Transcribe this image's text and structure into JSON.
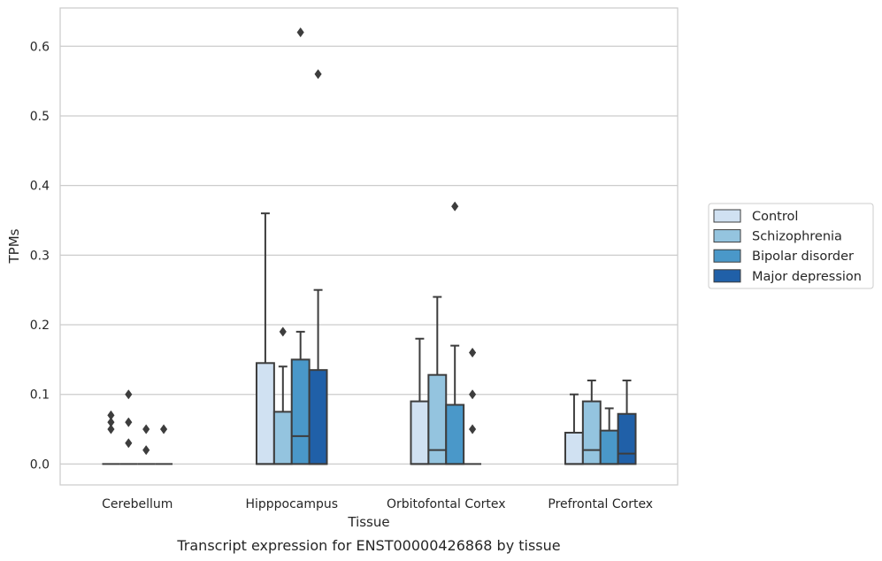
{
  "caption": "Transcript expression for ENST00000426868 by tissue",
  "chart_data": {
    "type": "boxplot",
    "xlabel": "Tissue",
    "ylabel": "TPMs",
    "ylim": [
      -0.03,
      0.655
    ],
    "yticks": [
      0.0,
      0.1,
      0.2,
      0.3,
      0.4,
      0.5,
      0.6
    ],
    "ytick_labels": [
      "0.0",
      "0.1",
      "0.2",
      "0.3",
      "0.4",
      "0.5",
      "0.6"
    ],
    "grid": "horizontal",
    "legend_position": "right",
    "categories": [
      "Cerebellum",
      "Hipppocampus",
      "Orbitofontal Cortex",
      "Prefrontal Cortex"
    ],
    "series": [
      {
        "name": "Control",
        "color": "#d0e1f2",
        "boxes": [
          {
            "q1": 0.0,
            "median": 0.0,
            "q3": 0.0,
            "whisker_low": 0.0,
            "whisker_high": 0.0,
            "outliers": [
              0.05,
              0.06,
              0.07
            ]
          },
          {
            "q1": 0.0,
            "median": 0.0,
            "q3": 0.145,
            "whisker_low": 0.0,
            "whisker_high": 0.36,
            "outliers": []
          },
          {
            "q1": 0.0,
            "median": 0.0,
            "q3": 0.09,
            "whisker_low": 0.0,
            "whisker_high": 0.18,
            "outliers": []
          },
          {
            "q1": 0.0,
            "median": 0.0,
            "q3": 0.045,
            "whisker_low": 0.0,
            "whisker_high": 0.1,
            "outliers": []
          }
        ]
      },
      {
        "name": "Schizophrenia",
        "color": "#94c4df",
        "boxes": [
          {
            "q1": 0.0,
            "median": 0.0,
            "q3": 0.0,
            "whisker_low": 0.0,
            "whisker_high": 0.0,
            "outliers": [
              0.03,
              0.06,
              0.1
            ]
          },
          {
            "q1": 0.0,
            "median": 0.0,
            "q3": 0.075,
            "whisker_low": 0.0,
            "whisker_high": 0.14,
            "outliers": [
              0.19
            ]
          },
          {
            "q1": 0.0,
            "median": 0.02,
            "q3": 0.128,
            "whisker_low": 0.0,
            "whisker_high": 0.24,
            "outliers": []
          },
          {
            "q1": 0.0,
            "median": 0.02,
            "q3": 0.09,
            "whisker_low": 0.0,
            "whisker_high": 0.12,
            "outliers": []
          }
        ]
      },
      {
        "name": "Bipolar disorder",
        "color": "#4a98c9",
        "boxes": [
          {
            "q1": 0.0,
            "median": 0.0,
            "q3": 0.0,
            "whisker_low": 0.0,
            "whisker_high": 0.0,
            "outliers": [
              0.02,
              0.05
            ]
          },
          {
            "q1": 0.0,
            "median": 0.04,
            "q3": 0.15,
            "whisker_low": 0.0,
            "whisker_high": 0.19,
            "outliers": [
              0.62
            ]
          },
          {
            "q1": 0.0,
            "median": 0.0,
            "q3": 0.085,
            "whisker_low": 0.0,
            "whisker_high": 0.17,
            "outliers": [
              0.37
            ]
          },
          {
            "q1": 0.0,
            "median": 0.0,
            "q3": 0.048,
            "whisker_low": 0.0,
            "whisker_high": 0.08,
            "outliers": []
          }
        ]
      },
      {
        "name": "Major depression",
        "color": "#2060a8",
        "boxes": [
          {
            "q1": 0.0,
            "median": 0.0,
            "q3": 0.0,
            "whisker_low": 0.0,
            "whisker_high": 0.0,
            "outliers": [
              0.05
            ]
          },
          {
            "q1": 0.0,
            "median": 0.0,
            "q3": 0.135,
            "whisker_low": 0.0,
            "whisker_high": 0.25,
            "outliers": [
              0.56
            ]
          },
          {
            "q1": 0.0,
            "median": 0.0,
            "q3": 0.0,
            "whisker_low": 0.0,
            "whisker_high": 0.0,
            "outliers": [
              0.05,
              0.1,
              0.16
            ]
          },
          {
            "q1": 0.0,
            "median": 0.015,
            "q3": 0.072,
            "whisker_low": 0.0,
            "whisker_high": 0.12,
            "outliers": []
          }
        ]
      }
    ]
  }
}
